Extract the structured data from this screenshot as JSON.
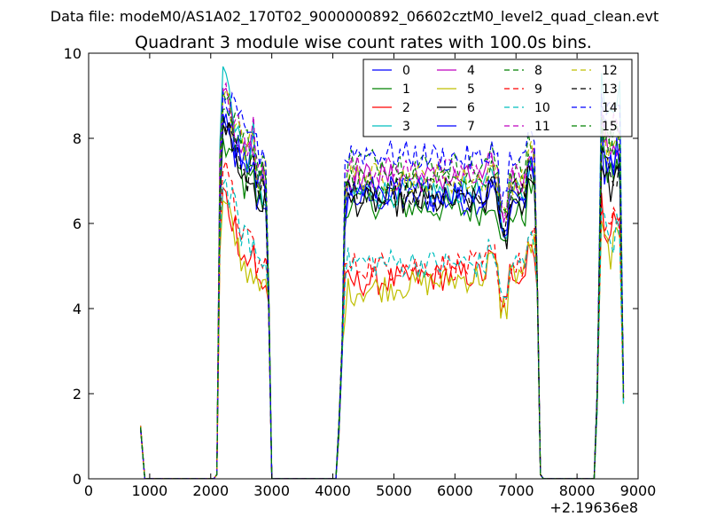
{
  "chart_data": {
    "type": "line",
    "suptitle": "Data file: modeM0/AS1A02_170T02_9000000892_06602cztM0_level2_quad_clean.evt",
    "title": "Quadrant 3 module wise count rates with 100.0s bins.",
    "xlabel": "",
    "ylabel": "",
    "x_offset_label": "+2.19636e8",
    "xlim": [
      0,
      9000
    ],
    "ylim": [
      0,
      10
    ],
    "xticks": [
      "0",
      "1000",
      "2000",
      "3000",
      "4000",
      "5000",
      "6000",
      "7000",
      "8000",
      "9000"
    ],
    "yticks": [
      "0",
      "2",
      "4",
      "6",
      "8",
      "10"
    ],
    "grid": false,
    "legend_position": "top-right",
    "series": [
      {
        "name": "0",
        "color": "#0000ff",
        "dash": "solid",
        "peaks": [
          8.3,
          6.6,
          7.9,
          6.5,
          8.0
        ]
      },
      {
        "name": "1",
        "color": "#008000",
        "dash": "solid",
        "peaks": [
          8.0,
          6.5,
          7.5,
          6.2,
          7.8
        ]
      },
      {
        "name": "2",
        "color": "#ff0000",
        "dash": "solid",
        "peaks": [
          6.8,
          4.6,
          5.3,
          4.9,
          6.6
        ]
      },
      {
        "name": "3",
        "color": "#00bfbf",
        "dash": "solid",
        "peaks": [
          9.7,
          6.7,
          8.0,
          6.8,
          9.6
        ]
      },
      {
        "name": "4",
        "color": "#bf00bf",
        "dash": "solid",
        "peaks": [
          9.2,
          7.1,
          7.8,
          7.0,
          8.5
        ]
      },
      {
        "name": "5",
        "color": "#bfbf00",
        "dash": "solid",
        "peaks": [
          6.5,
          4.4,
          5.0,
          4.9,
          6.0
        ]
      },
      {
        "name": "6",
        "color": "#000000",
        "dash": "solid",
        "peaks": [
          8.4,
          6.5,
          7.0,
          6.5,
          7.5
        ]
      },
      {
        "name": "7",
        "color": "#0000ff",
        "dash": "solid",
        "peaks": [
          8.6,
          6.8,
          7.2,
          6.7,
          8.2
        ]
      },
      {
        "name": "8",
        "color": "#008000",
        "dash": "dashed",
        "peaks": [
          9.2,
          7.5,
          7.8,
          7.2,
          8.6
        ]
      },
      {
        "name": "9",
        "color": "#ff0000",
        "dash": "dashed",
        "peaks": [
          7.3,
          5.0,
          5.5,
          5.0,
          6.5
        ]
      },
      {
        "name": "10",
        "color": "#00bfbf",
        "dash": "dashed",
        "peaks": [
          7.0,
          5.1,
          5.6,
          5.0,
          6.4
        ]
      },
      {
        "name": "11",
        "color": "#bf00bf",
        "dash": "dashed",
        "peaks": [
          9.1,
          7.3,
          8.2,
          7.1,
          8.7
        ]
      },
      {
        "name": "12",
        "color": "#bfbf00",
        "dash": "dashed",
        "peaks": [
          9.0,
          7.1,
          7.9,
          7.0,
          8.3
        ]
      },
      {
        "name": "13",
        "color": "#000000",
        "dash": "dashed",
        "peaks": [
          8.5,
          6.8,
          7.2,
          6.7,
          7.8
        ]
      },
      {
        "name": "14",
        "color": "#0000ff",
        "dash": "dashed",
        "peaks": [
          9.0,
          7.7,
          8.3,
          7.4,
          9.2
        ]
      },
      {
        "name": "15",
        "color": "#008000",
        "dash": "dashed",
        "peaks": [
          8.6,
          7.0,
          7.6,
          6.9,
          8.4
        ]
      }
    ]
  }
}
